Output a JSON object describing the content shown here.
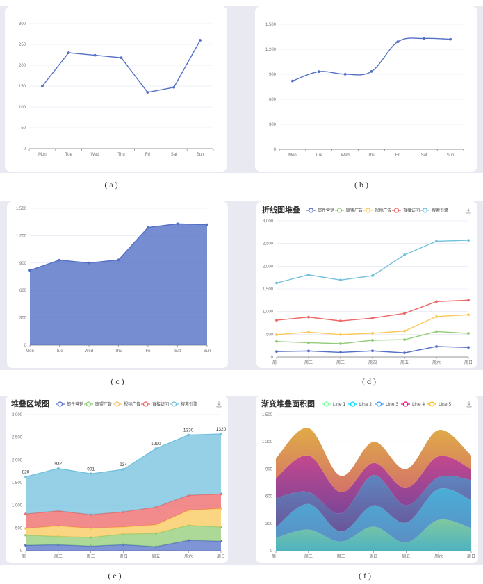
{
  "captions": [
    "( a )",
    "( b )",
    "( c )",
    "( d )",
    "( e )",
    "( f )"
  ],
  "colors": {
    "primary": "#5470c6",
    "palette": [
      "#5470c6",
      "#91cc75",
      "#fac858",
      "#ee6666",
      "#73c0de"
    ],
    "grid": "#e0e6f1",
    "axis": "#6e7079",
    "panel_bg": "#e9e9f2"
  },
  "toolbox": {
    "save_icon": "download-icon"
  },
  "chart_data": [
    {
      "id": "a",
      "type": "line",
      "title": "",
      "smooth": false,
      "area": false,
      "categories": [
        "Mon",
        "Tue",
        "Wed",
        "Thu",
        "Fri",
        "Sat",
        "Sun"
      ],
      "series": [
        {
          "name": "",
          "values": [
            150,
            230,
            224,
            218,
            135,
            147,
            260
          ]
        }
      ],
      "ylim": [
        0,
        300
      ],
      "yticks": [
        "0",
        "50",
        "100",
        "150",
        "200",
        "250",
        "300"
      ],
      "boundary_gap": true,
      "grid": true
    },
    {
      "id": "b",
      "type": "line",
      "title": "",
      "smooth": true,
      "area": false,
      "categories": [
        "Mon",
        "Tue",
        "Wed",
        "Thu",
        "Fri",
        "Sat",
        "Sun"
      ],
      "series": [
        {
          "name": "",
          "values": [
            820,
            932,
            901,
            934,
            1290,
            1330,
            1320
          ]
        }
      ],
      "ylim": [
        0,
        1500
      ],
      "yticks": [
        "0",
        "300",
        "600",
        "900",
        "1,200",
        "1,500"
      ],
      "boundary_gap": true,
      "grid": true
    },
    {
      "id": "c",
      "type": "area",
      "title": "",
      "smooth": false,
      "area": true,
      "categories": [
        "Mon",
        "Tue",
        "Wed",
        "Thu",
        "Fri",
        "Sat",
        "Sun"
      ],
      "series": [
        {
          "name": "",
          "values": [
            820,
            932,
            901,
            934,
            1290,
            1330,
            1320
          ]
        }
      ],
      "ylim": [
        0,
        1500
      ],
      "yticks": [
        "0",
        "300",
        "600",
        "900",
        "1,200",
        "1,500"
      ],
      "boundary_gap": false,
      "grid": true
    },
    {
      "id": "d",
      "type": "line",
      "title": "折线图堆叠",
      "stacked": true,
      "smooth": false,
      "area": false,
      "categories": [
        "周一",
        "周二",
        "周三",
        "周四",
        "周五",
        "周六",
        "周日"
      ],
      "series": [
        {
          "name": "邮件营销",
          "values": [
            120,
            132,
            101,
            134,
            90,
            230,
            210
          ]
        },
        {
          "name": "联盟广告",
          "values": [
            220,
            182,
            191,
            234,
            290,
            330,
            310
          ]
        },
        {
          "name": "视频广告",
          "values": [
            150,
            232,
            201,
            154,
            190,
            330,
            410
          ]
        },
        {
          "name": "直接访问",
          "values": [
            320,
            332,
            301,
            334,
            390,
            330,
            320
          ]
        },
        {
          "name": "搜索引擎",
          "values": [
            820,
            932,
            901,
            934,
            1290,
            1330,
            1320
          ]
        }
      ],
      "ylim": [
        0,
        3000
      ],
      "yticks": [
        "0",
        "500",
        "1,000",
        "1,500",
        "2,000",
        "2,500",
        "3,000"
      ],
      "boundary_gap": false,
      "legend_position": "top",
      "grid": true
    },
    {
      "id": "e",
      "type": "area",
      "title": "堆叠区域图",
      "stacked": true,
      "smooth": false,
      "area": true,
      "categories": [
        "周一",
        "周二",
        "周三",
        "周四",
        "周五",
        "周六",
        "周日"
      ],
      "series": [
        {
          "name": "邮件营销",
          "values": [
            120,
            132,
            101,
            134,
            90,
            230,
            210
          ]
        },
        {
          "name": "联盟广告",
          "values": [
            220,
            182,
            191,
            234,
            290,
            330,
            310
          ]
        },
        {
          "name": "视频广告",
          "values": [
            150,
            232,
            201,
            154,
            190,
            330,
            410
          ]
        },
        {
          "name": "直接访问",
          "values": [
            320,
            332,
            301,
            334,
            390,
            330,
            320
          ]
        },
        {
          "name": "搜索引擎",
          "values": [
            820,
            932,
            901,
            934,
            1290,
            1330,
            1320
          ],
          "labels": [
            "820",
            "932",
            "901",
            "934",
            "1290",
            "1330",
            "1320"
          ]
        }
      ],
      "ylim": [
        0,
        3000
      ],
      "yticks": [
        "0",
        "500",
        "1,000",
        "1,500",
        "2,000",
        "2,500",
        "3,000"
      ],
      "boundary_gap": false,
      "legend_position": "top",
      "grid": true
    },
    {
      "id": "f",
      "type": "area",
      "title": "渐变堆叠面积图",
      "stacked": true,
      "smooth": true,
      "area": true,
      "gradient": true,
      "categories": [
        "周一",
        "周二",
        "周三",
        "周四",
        "周五",
        "周六",
        "周日"
      ],
      "series": [
        {
          "name": "Line 1",
          "values": [
            140,
            232,
            101,
            264,
            90,
            340,
            250
          ],
          "color": "#80ffa5",
          "gradient": [
            "#80ffa5",
            "#01bfec"
          ],
          "display": [
            "#7fc8a0",
            "#4fb3c0"
          ]
        },
        {
          "name": "Line 2",
          "values": [
            120,
            282,
            111,
            234,
            220,
            340,
            310
          ],
          "color": "#00ddff",
          "gradient": [
            "#00ddff",
            "#4d77ff"
          ],
          "display": [
            "#4aaed6",
            "#5b8fc4"
          ]
        },
        {
          "name": "Line 3",
          "values": [
            320,
            132,
            201,
            334,
            190,
            130,
            220
          ],
          "color": "#37a2ff",
          "gradient": [
            "#37a2ff",
            "#7415db"
          ],
          "display": [
            "#5d86c0",
            "#6a5599"
          ]
        },
        {
          "name": "Line 4",
          "values": [
            220,
            402,
            231,
            134,
            190,
            230,
            120
          ],
          "color": "#ff0087",
          "gradient": [
            "#ff0087",
            "#87009d"
          ],
          "display": [
            "#c4488e",
            "#7e4597"
          ]
        },
        {
          "name": "Line 5",
          "values": [
            220,
            302,
            181,
            234,
            210,
            290,
            150
          ],
          "color": "#ffbf00",
          "gradient": [
            "#ffbf00",
            "#e03e6c"
          ],
          "display": [
            "#e0ab46",
            "#d4726a"
          ]
        }
      ],
      "ylim": [
        0,
        1500
      ],
      "yticks": [
        "0",
        "300",
        "600",
        "900",
        "1,200",
        "1,500"
      ],
      "boundary_gap": false,
      "legend_position": "top",
      "grid": true
    }
  ]
}
